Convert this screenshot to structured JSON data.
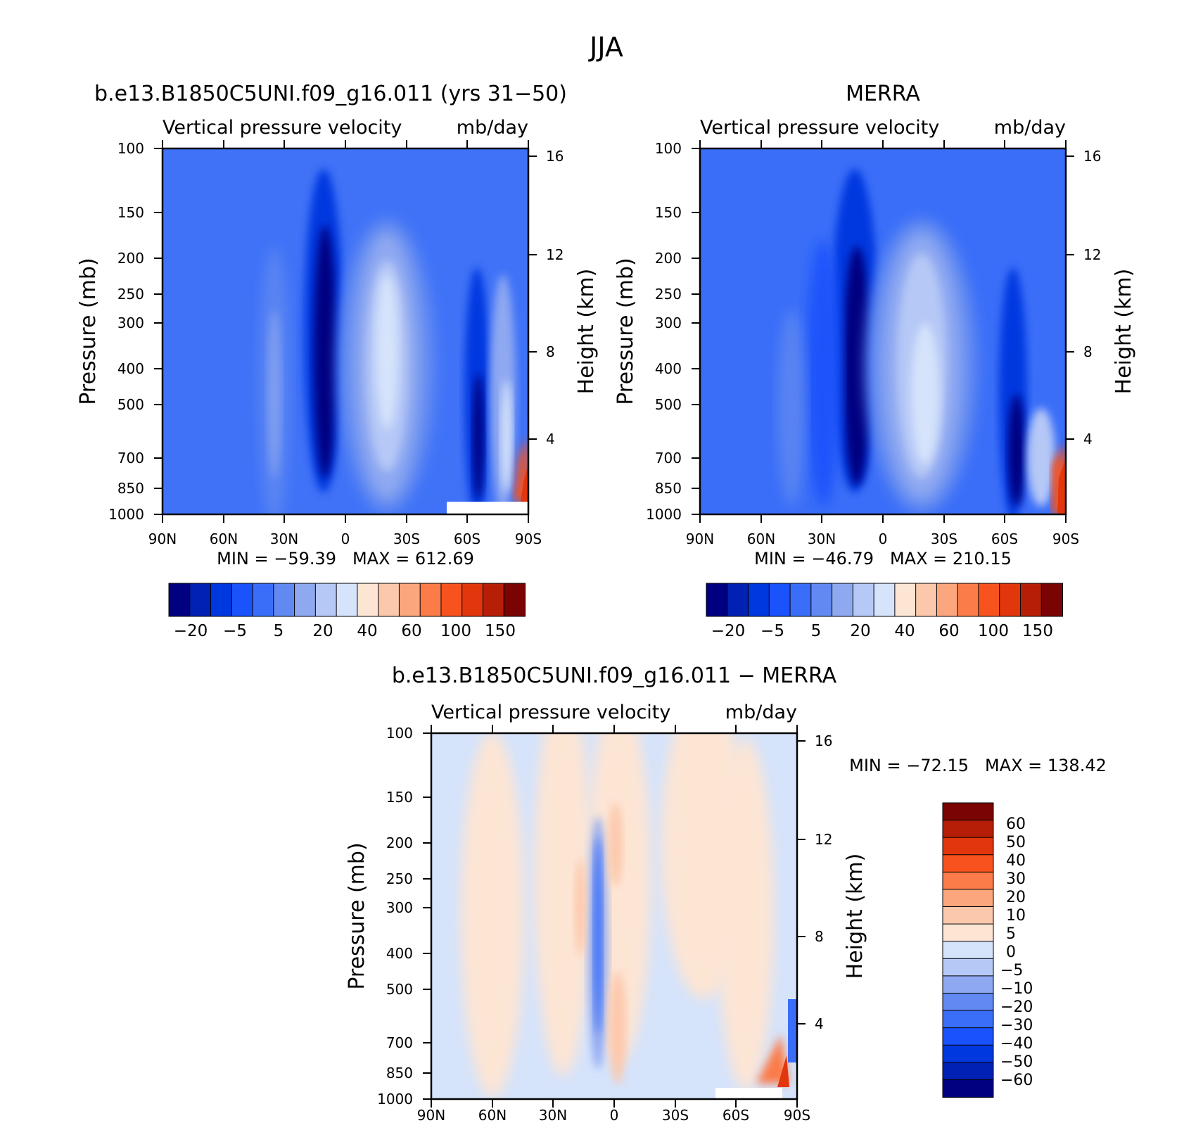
{
  "figure": {
    "title": "JJA"
  },
  "colors": {
    "full_palette": [
      "#000080",
      "#0021b3",
      "#0038e0",
      "#1a52fb",
      "#3a6ef8",
      "#6189f1",
      "#8fa9f1",
      "#b6c8f6",
      "#d5e3fb",
      "#fde5d4",
      "#fcc8ab",
      "#fba67c",
      "#fb7c48",
      "#f8531f",
      "#e2360d",
      "#b71e07",
      "#7a0403"
    ],
    "diff_palette": [
      "#000080",
      "#0021b3",
      "#0038e0",
      "#1a52fb",
      "#3a6ef8",
      "#6189f1",
      "#8fa9f1",
      "#b6c8f6",
      "#d5e3fb",
      "#fde5d4",
      "#fcc8ab",
      "#fba67c",
      "#fb7c48",
      "#f8531f",
      "#e2360d",
      "#b71e07",
      "#7a0403"
    ]
  },
  "chart_data": [
    {
      "type": "heatmap",
      "id": "model",
      "title": "b.e13.B1850C5UNI.f09_g16.011 (yrs 31−50)",
      "subtitle_left": "Vertical pressure velocity",
      "subtitle_right": "mb/day",
      "ylabel": "Pressure (mb)",
      "ylabel_right": "Height (km)",
      "stats": "MIN = −59.39   MAX = 612.69",
      "x_ticks": [
        "90N",
        "60N",
        "30N",
        "0",
        "30S",
        "60S",
        "90S"
      ],
      "y_ticks": [
        "100",
        "150",
        "200",
        "250",
        "300",
        "400",
        "500",
        "700",
        "850",
        "1000"
      ],
      "height_ticks": [
        "16",
        "12",
        "8",
        "4"
      ],
      "colorbar_labels": [
        "−20",
        "−5",
        "5",
        "20",
        "40",
        "60",
        "100",
        "150"
      ],
      "min": -59.39,
      "max": 612.69,
      "features": [
        {
          "lat": 12,
          "top": 140,
          "bottom": 1000,
          "value": -30
        },
        {
          "lat": -18,
          "top": 180,
          "bottom": 1000,
          "value": 5
        },
        {
          "lat": -68,
          "top": 350,
          "bottom": 1000,
          "value": -15
        },
        {
          "lat": -87,
          "top": 700,
          "bottom": 1000,
          "value": 100
        }
      ]
    },
    {
      "type": "heatmap",
      "id": "obs",
      "title": "MERRA",
      "subtitle_left": "Vertical pressure velocity",
      "subtitle_right": "mb/day",
      "ylabel": "Pressure (mb)",
      "ylabel_right": "Height (km)",
      "stats": "MIN = −46.79   MAX = 210.15",
      "x_ticks": [
        "90N",
        "60N",
        "30N",
        "0",
        "30S",
        "60S",
        "90S"
      ],
      "y_ticks": [
        "100",
        "150",
        "200",
        "250",
        "300",
        "400",
        "500",
        "700",
        "850",
        "1000"
      ],
      "height_ticks": [
        "16",
        "12",
        "8",
        "4"
      ],
      "colorbar_labels": [
        "−20",
        "−5",
        "5",
        "20",
        "40",
        "60",
        "100",
        "150"
      ],
      "min": -46.79,
      "max": 210.15,
      "features": [
        {
          "lat": 10,
          "top": 150,
          "bottom": 1000,
          "value": -25
        },
        {
          "lat": -18,
          "top": 200,
          "bottom": 1000,
          "value": 10
        },
        {
          "lat": -68,
          "top": 400,
          "bottom": 1000,
          "value": -15
        },
        {
          "lat": -87,
          "top": 700,
          "bottom": 1000,
          "value": 100
        }
      ]
    },
    {
      "type": "heatmap",
      "id": "diff",
      "title": "b.e13.B1850C5UNI.f09_g16.011 − MERRA",
      "subtitle_left": "Vertical pressure velocity",
      "subtitle_right": "mb/day",
      "ylabel": "Pressure (mb)",
      "ylabel_right": "Height (km)",
      "stats": "MIN = −72.15   MAX = 138.42",
      "x_ticks": [
        "90N",
        "60N",
        "30N",
        "0",
        "30S",
        "60S",
        "90S"
      ],
      "y_ticks": [
        "100",
        "150",
        "200",
        "250",
        "300",
        "400",
        "500",
        "700",
        "850",
        "1000"
      ],
      "height_ticks": [
        "16",
        "12",
        "8",
        "4"
      ],
      "colorbar_labels": [
        "60",
        "50",
        "40",
        "30",
        "20",
        "10",
        "5",
        "0",
        "−5",
        "−10",
        "−20",
        "−30",
        "−40",
        "−50",
        "−60"
      ],
      "min": -72.15,
      "max": 138.42,
      "features": [
        {
          "lat": 8,
          "top": 200,
          "bottom": 1000,
          "value": -15
        },
        {
          "lat": 0,
          "top": 200,
          "bottom": 1000,
          "value": 7
        },
        {
          "lat": -85,
          "top": 700,
          "bottom": 1000,
          "value": 30
        }
      ]
    }
  ]
}
